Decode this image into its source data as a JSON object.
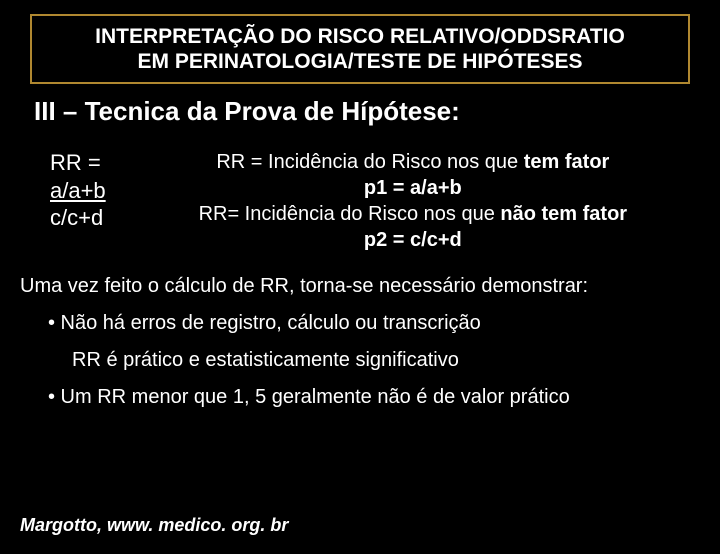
{
  "header": {
    "line1": "INTERPRETAÇÃO DO RISCO RELATIVO/ODDSRATIO",
    "line2": "EM PERINATOLOGIA/TESTE DE HIPÓTESES"
  },
  "section_title": "III – Tecnica da Prova de Hípótese:",
  "formula_left": {
    "l1": "RR =",
    "l2": "a/a+b",
    "l3": "c/c+d"
  },
  "formula_right": {
    "r1_pre": "RR = Incidência do Risco nos que ",
    "r1_bold": "tem fator",
    "r2": "p1 = a/a+b",
    "r3_pre": "RR= Incidência do Risco nos que ",
    "r3_bold": "não tem fator",
    "r4": "p2 = c/c+d"
  },
  "para1": "Uma vez feito o cálculo de RR, torna-se necessário demonstrar:",
  "bullet1": "• Não há erros de registro, cálculo ou transcrição",
  "sub1": "RR é prático e estatisticamente significativo",
  "bullet2": "• Um RR menor que 1, 5 geralmente não é de valor prático",
  "footer": "Margotto, www. medico. org. br",
  "colors": {
    "background": "#000000",
    "text": "#ffffff",
    "border": "#b08830"
  }
}
